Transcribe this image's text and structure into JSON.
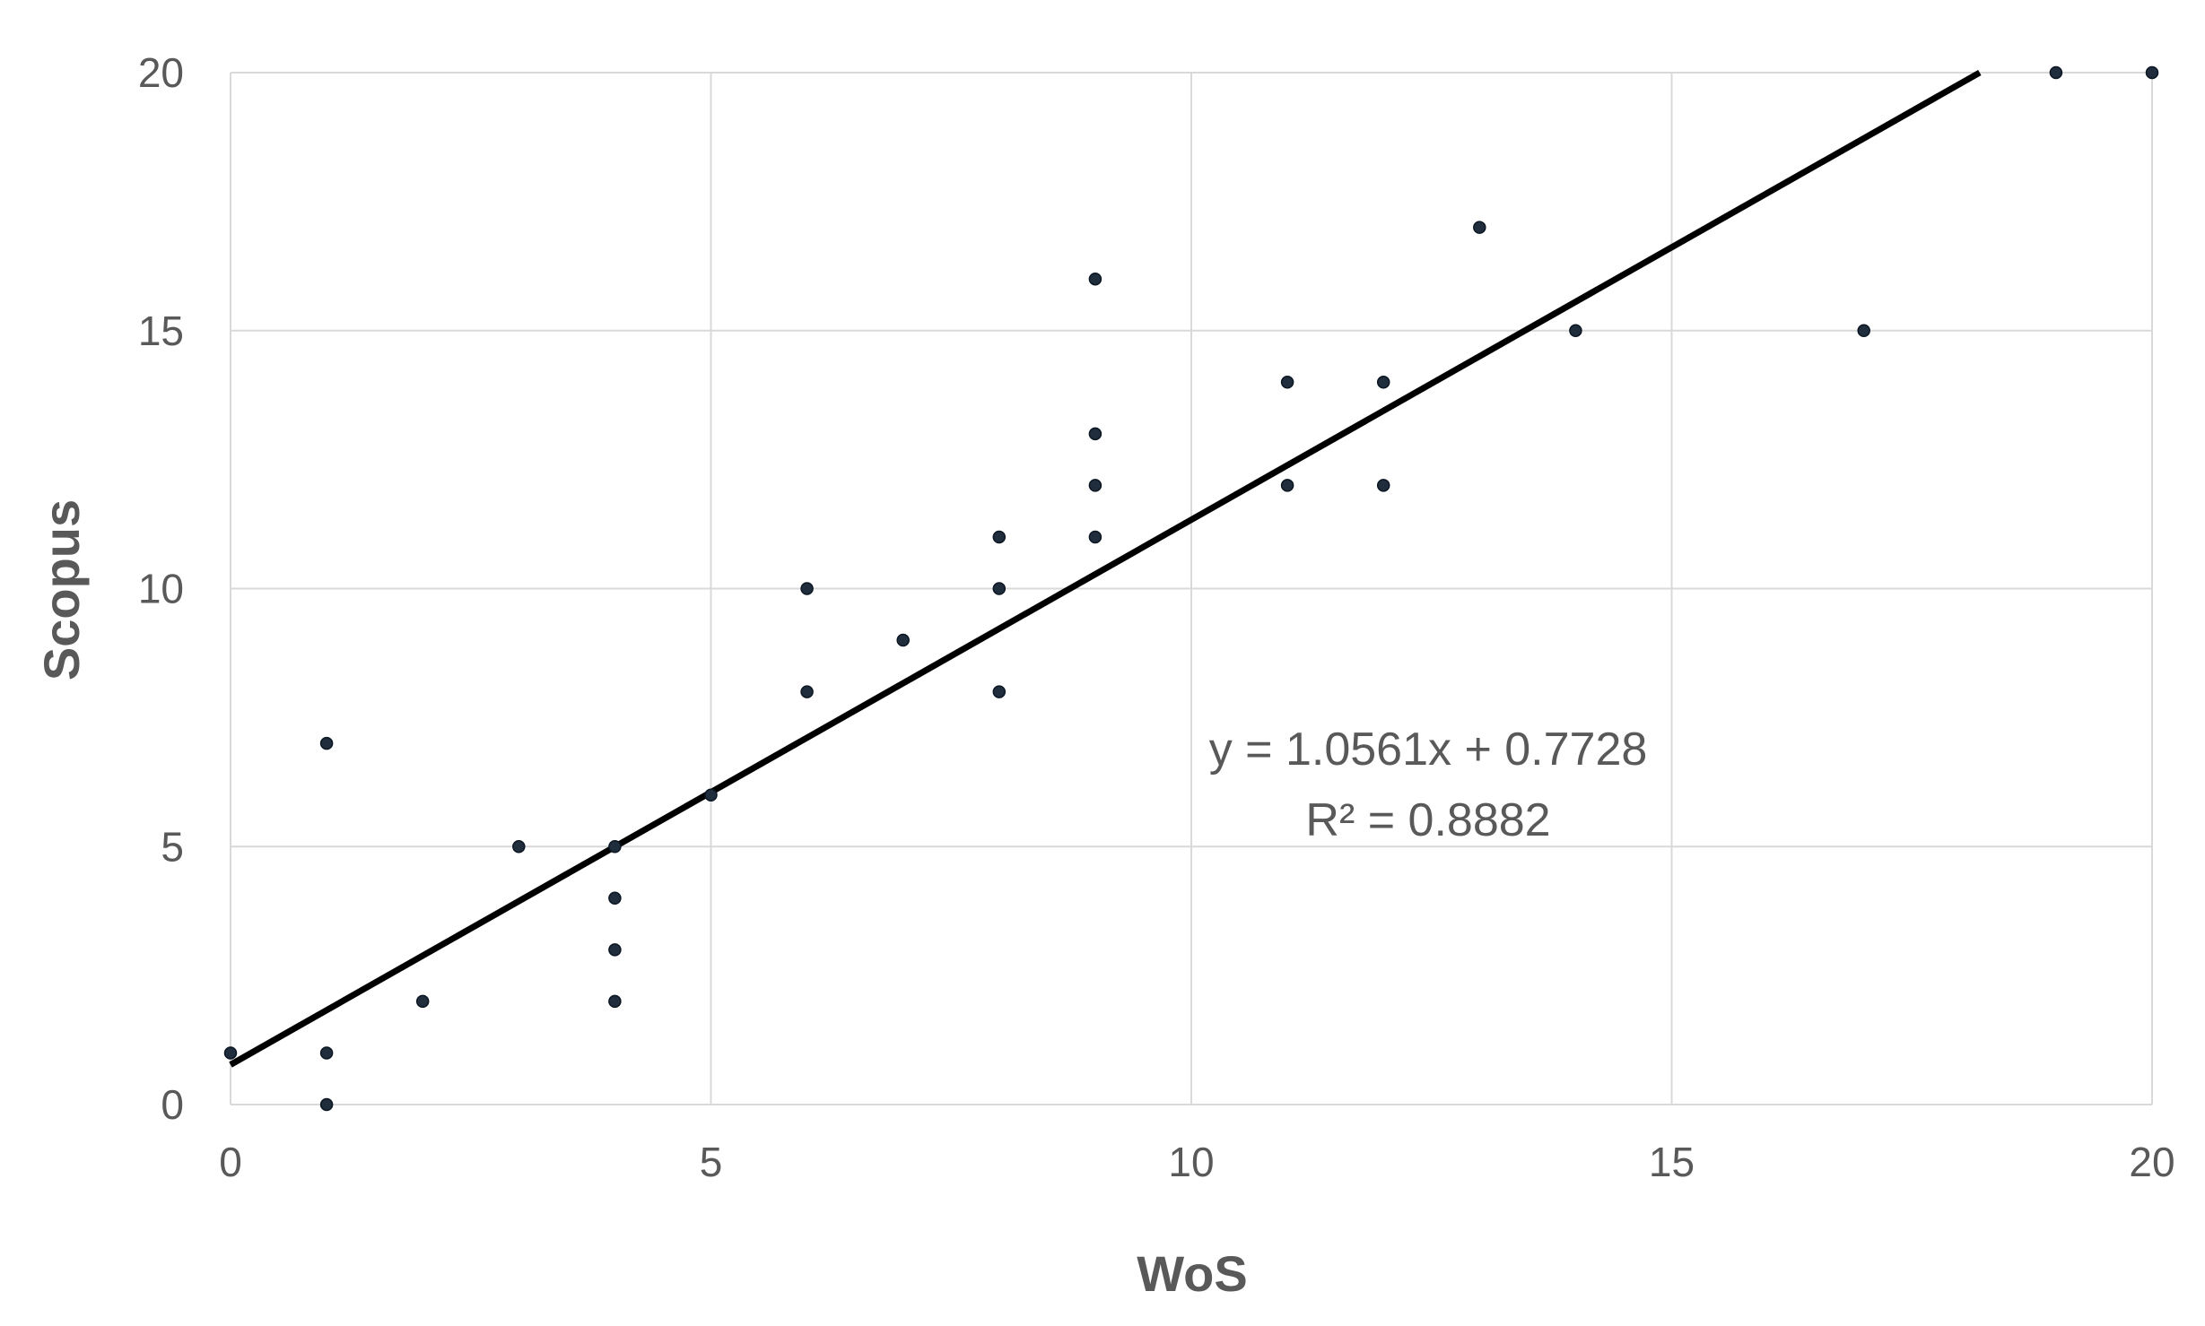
{
  "chart_data": {
    "type": "scatter",
    "xlabel": "WoS",
    "ylabel": "Scopus",
    "xlim": [
      0,
      20
    ],
    "ylim": [
      0,
      20
    ],
    "x_ticks": [
      0,
      5,
      10,
      15,
      20
    ],
    "y_ticks": [
      0,
      5,
      10,
      15,
      20
    ],
    "grid": true,
    "legend": "none",
    "colors": {
      "point": "#1f2d3d",
      "trendline": "#000000",
      "grid": "#d9d9d9",
      "text": "#595959"
    },
    "points": [
      {
        "x": 0,
        "y": 1
      },
      {
        "x": 1,
        "y": 0
      },
      {
        "x": 1,
        "y": 1
      },
      {
        "x": 1,
        "y": 7
      },
      {
        "x": 2,
        "y": 2
      },
      {
        "x": 3,
        "y": 5
      },
      {
        "x": 4,
        "y": 2
      },
      {
        "x": 4,
        "y": 3
      },
      {
        "x": 4,
        "y": 4
      },
      {
        "x": 4,
        "y": 5
      },
      {
        "x": 5,
        "y": 6
      },
      {
        "x": 6,
        "y": 8
      },
      {
        "x": 6,
        "y": 10
      },
      {
        "x": 7,
        "y": 9
      },
      {
        "x": 8,
        "y": 8
      },
      {
        "x": 8,
        "y": 10
      },
      {
        "x": 8,
        "y": 11
      },
      {
        "x": 9,
        "y": 11
      },
      {
        "x": 9,
        "y": 12
      },
      {
        "x": 9,
        "y": 13
      },
      {
        "x": 9,
        "y": 16
      },
      {
        "x": 11,
        "y": 12
      },
      {
        "x": 11,
        "y": 14
      },
      {
        "x": 12,
        "y": 12
      },
      {
        "x": 12,
        "y": 14
      },
      {
        "x": 13,
        "y": 17
      },
      {
        "x": 14,
        "y": 15
      },
      {
        "x": 17,
        "y": 15
      },
      {
        "x": 19,
        "y": 20
      },
      {
        "x": 20,
        "y": 20
      }
    ],
    "trendline": {
      "type": "linear",
      "slope": 1.0561,
      "intercept": 0.7728,
      "equation": "y = 1.0561x + 0.7728",
      "r_squared": "R² = 0.8882"
    }
  }
}
